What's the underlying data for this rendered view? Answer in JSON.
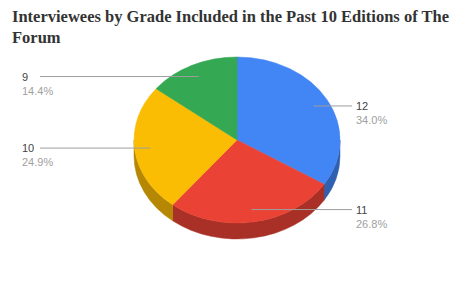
{
  "chart_data": {
    "type": "pie",
    "title": "Interviewees by Grade Included in the Past 10 Editions of The Forum",
    "categories": [
      "12",
      "11",
      "10",
      "9"
    ],
    "values": [
      34.0,
      26.8,
      24.9,
      14.4
    ],
    "value_labels": [
      "34.0%",
      "26.8%",
      "24.9%",
      "14.4%"
    ],
    "colors": [
      "#4285f4",
      "#ea4335",
      "#fbbc04",
      "#34a853"
    ],
    "data_labels": true
  }
}
